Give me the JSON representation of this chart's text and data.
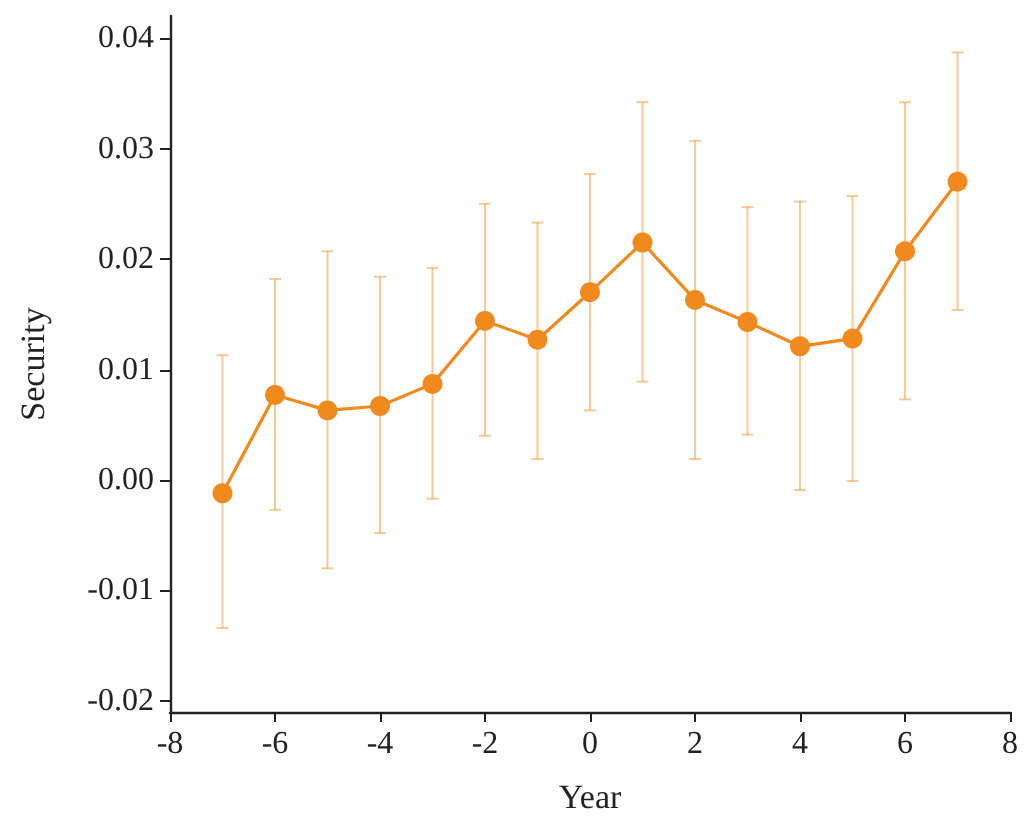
{
  "chart_data": {
    "type": "line",
    "xlabel": "Year",
    "ylabel": "Security",
    "x": [
      -7,
      -6,
      -5,
      -4,
      -3,
      -2,
      -1,
      0,
      1,
      2,
      3,
      4,
      5,
      6,
      7
    ],
    "series": [
      {
        "color": "#f0891e",
        "values": [
          -0.0012,
          0.0077,
          0.0063,
          0.0067,
          0.0087,
          0.0144,
          0.0127,
          0.017,
          0.0215,
          0.0163,
          0.0143,
          0.0121,
          0.0128,
          0.0207,
          0.027
        ],
        "errors": [
          [
            -0.0134,
            0.0113
          ],
          [
            -0.0027,
            0.0182
          ],
          [
            -0.008,
            0.0207
          ],
          [
            -0.0048,
            0.0184
          ],
          [
            -0.0017,
            0.0192
          ],
          [
            0.004,
            0.025
          ],
          [
            0.0019,
            0.0233
          ],
          [
            0.0063,
            0.0277
          ],
          [
            0.0089,
            0.0342
          ],
          [
            0.0019,
            0.0307
          ],
          [
            0.0041,
            0.0247
          ],
          [
            -0.0009,
            0.0252
          ],
          [
            -0.0001,
            0.0257
          ],
          [
            0.0073,
            0.0342
          ],
          [
            0.0154,
            0.0387
          ]
        ]
      }
    ],
    "xlim": [
      -8,
      8
    ],
    "xticks": [
      -8,
      -6,
      -4,
      -2,
      0,
      2,
      4,
      6,
      8
    ],
    "ylim": [
      -0.021,
      0.042
    ],
    "yticks": [
      {
        "value": -0.02,
        "label": "-0.02"
      },
      {
        "value": -0.01,
        "label": "-0.01"
      },
      {
        "value": 0,
        "label": "0.00"
      },
      {
        "value": 0.01,
        "label": "0.01"
      },
      {
        "value": 0.02,
        "label": "0.02"
      },
      {
        "value": 0.03,
        "label": "0.03"
      },
      {
        "value": 0.04,
        "label": "0.04"
      }
    ],
    "marker": "circle",
    "line_style": "solid"
  }
}
